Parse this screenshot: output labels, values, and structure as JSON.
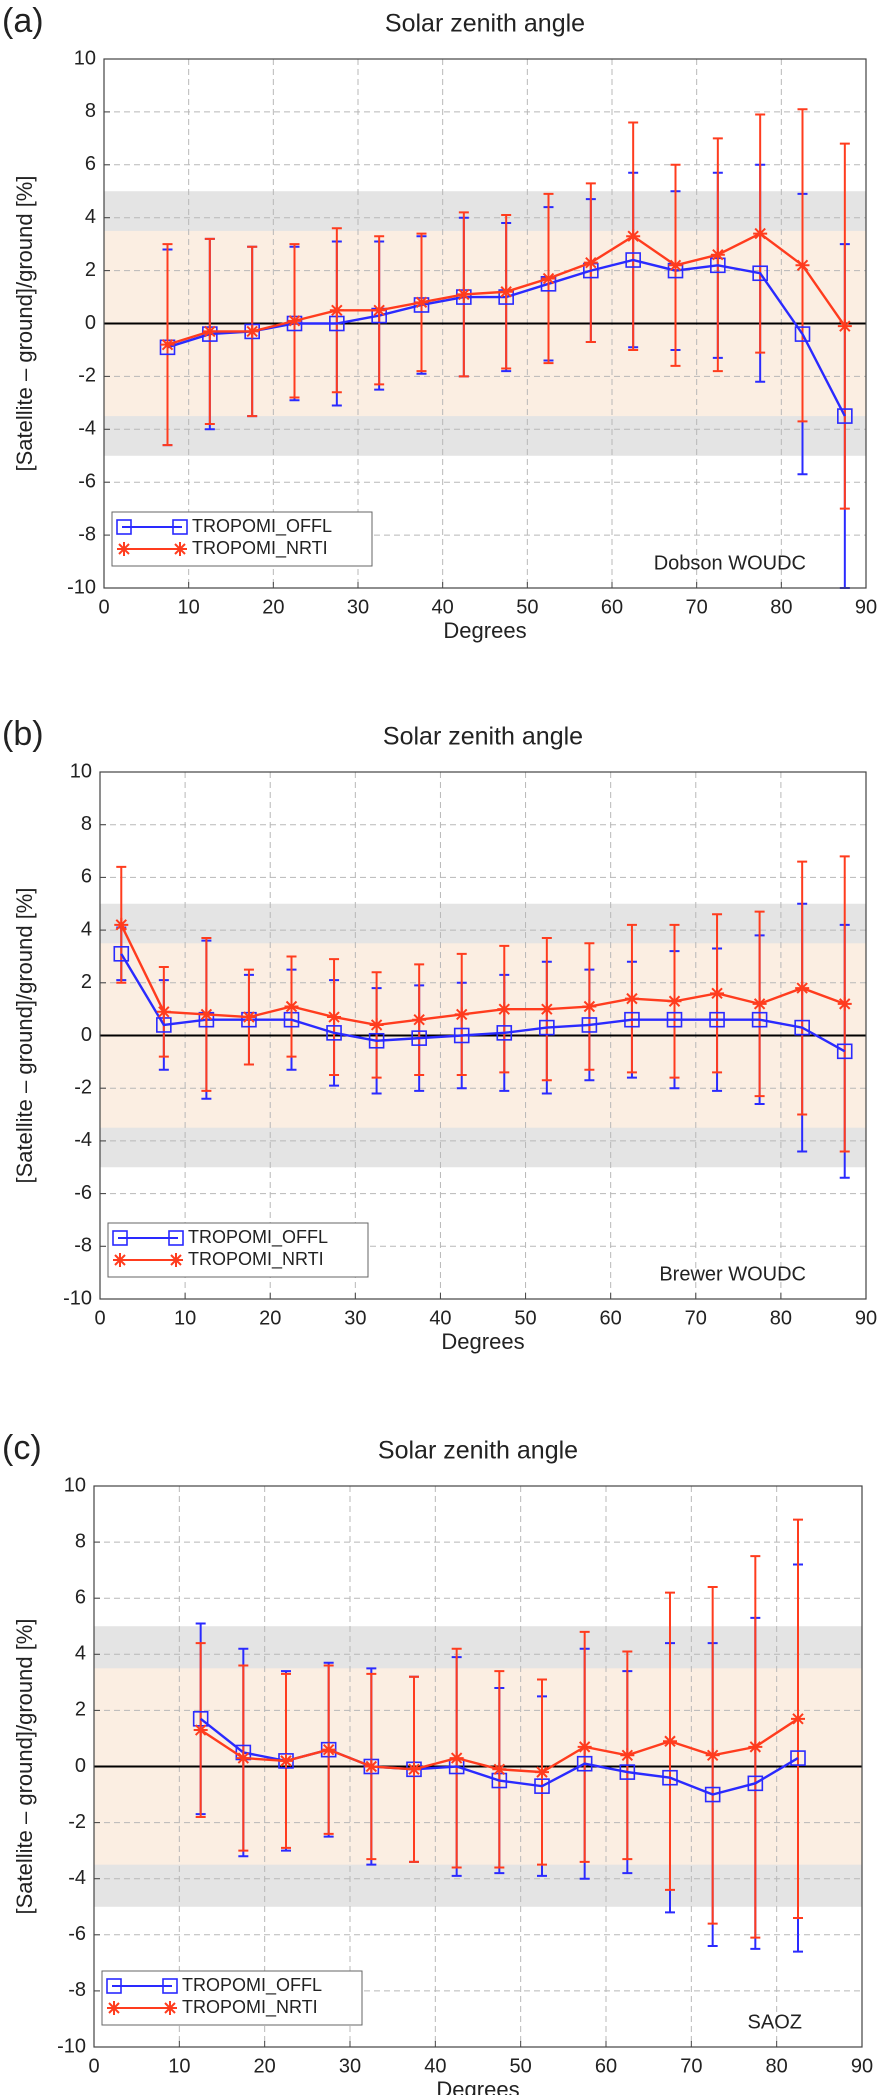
{
  "chart_data": [
    {
      "type": "line",
      "panel_label": "(a)",
      "title": "Solar zenith angle",
      "x_label": "Degrees",
      "y_label": "[Satellite – ground]/ground [%]",
      "annotation": "Dobson WOUDC",
      "x": [
        7.5,
        12.5,
        17.5,
        22.5,
        27.5,
        32.5,
        37.5,
        42.5,
        47.5,
        52.5,
        57.5,
        62.5,
        67.5,
        72.5,
        77.5,
        82.5,
        87.5
      ],
      "series": [
        {
          "name": "TROPOMI_OFFL",
          "color": "#2a2aff",
          "marker": "square",
          "values": [
            -0.9,
            -0.4,
            -0.3,
            0.0,
            0.0,
            0.3,
            0.7,
            1.0,
            1.0,
            1.5,
            2.0,
            2.4,
            2.0,
            2.2,
            1.9,
            -0.4,
            -3.5
          ],
          "errors": [
            3.7,
            3.6,
            3.2,
            2.9,
            3.1,
            2.8,
            2.6,
            3.0,
            2.8,
            2.9,
            2.7,
            3.3,
            3.0,
            3.5,
            4.1,
            5.3,
            6.5
          ]
        },
        {
          "name": "TROPOMI_NRTI",
          "color": "#ff3c1e",
          "marker": "asterisk",
          "values": [
            -0.8,
            -0.3,
            -0.3,
            0.1,
            0.5,
            0.5,
            0.8,
            1.1,
            1.2,
            1.7,
            2.3,
            3.3,
            2.2,
            2.6,
            3.4,
            2.2,
            -0.1
          ],
          "errors": [
            3.8,
            3.5,
            3.2,
            2.9,
            3.1,
            2.8,
            2.6,
            3.1,
            2.9,
            3.2,
            3.0,
            4.3,
            3.8,
            4.4,
            4.5,
            5.9,
            6.9
          ]
        }
      ],
      "bands": [
        {
          "range": [
            -5,
            5
          ],
          "color": "#e4e4e4"
        },
        {
          "range": [
            -3.5,
            3.5
          ],
          "color": "#fbeee2"
        }
      ],
      "xlim": [
        0,
        90
      ],
      "xticks": [
        0,
        10,
        20,
        30,
        40,
        50,
        60,
        70,
        80,
        90
      ],
      "ylim": [
        -10,
        10
      ],
      "yticks": [
        -10,
        -8,
        -6,
        -4,
        -2,
        0,
        2,
        4,
        6,
        8,
        10
      ],
      "grid": true,
      "legend": "lower left"
    },
    {
      "type": "line",
      "panel_label": "(b)",
      "title": "Solar zenith angle",
      "x_label": "Degrees",
      "y_label": "[Satellite – ground]/ground [%]",
      "annotation": "Brewer WOUDC",
      "x": [
        2.5,
        7.5,
        12.5,
        17.5,
        22.5,
        27.5,
        32.5,
        37.5,
        42.5,
        47.5,
        52.5,
        57.5,
        62.5,
        67.5,
        72.5,
        77.5,
        82.5,
        87.5
      ],
      "series": [
        {
          "name": "TROPOMI_OFFL",
          "color": "#2a2aff",
          "marker": "square",
          "values": [
            3.1,
            0.4,
            0.6,
            0.6,
            0.6,
            0.1,
            -0.2,
            -0.1,
            0.0,
            0.1,
            0.3,
            0.4,
            0.6,
            0.6,
            0.6,
            0.6,
            0.3,
            -0.6
          ],
          "errors": [
            1.0,
            1.7,
            3.0,
            1.7,
            1.9,
            2.0,
            2.0,
            2.0,
            2.0,
            2.2,
            2.5,
            2.1,
            2.2,
            2.6,
            2.7,
            3.2,
            4.7,
            4.8
          ]
        },
        {
          "name": "TROPOMI_NRTI",
          "color": "#ff3c1e",
          "marker": "asterisk",
          "values": [
            4.2,
            0.9,
            0.8,
            0.7,
            1.1,
            0.7,
            0.4,
            0.6,
            0.8,
            1.0,
            1.0,
            1.1,
            1.4,
            1.3,
            1.6,
            1.2,
            1.8,
            1.2
          ],
          "errors": [
            2.2,
            1.7,
            2.9,
            1.8,
            1.9,
            2.2,
            2.0,
            2.1,
            2.3,
            2.4,
            2.7,
            2.4,
            2.8,
            2.9,
            3.0,
            3.5,
            4.8,
            5.6
          ]
        }
      ],
      "bands": [
        {
          "range": [
            -5,
            5
          ],
          "color": "#e4e4e4"
        },
        {
          "range": [
            -3.5,
            3.5
          ],
          "color": "#fbeee2"
        }
      ],
      "xlim": [
        0,
        90
      ],
      "xticks": [
        0,
        10,
        20,
        30,
        40,
        50,
        60,
        70,
        80,
        90
      ],
      "ylim": [
        -10,
        10
      ],
      "yticks": [
        -10,
        -8,
        -6,
        -4,
        -2,
        0,
        2,
        4,
        6,
        8,
        10
      ],
      "grid": true,
      "legend": "lower left"
    },
    {
      "type": "line",
      "panel_label": "(c)",
      "title": "Solar zenith angle",
      "x_label": "Degrees",
      "y_label": "[Satellite – ground]/ground [%]",
      "annotation": "SAOZ",
      "x": [
        12.5,
        17.5,
        22.5,
        27.5,
        32.5,
        37.5,
        42.5,
        47.5,
        52.5,
        57.5,
        62.5,
        67.5,
        72.5,
        77.5,
        82.5
      ],
      "series": [
        {
          "name": "TROPOMI_OFFL",
          "color": "#2a2aff",
          "marker": "square",
          "values": [
            1.7,
            0.5,
            0.2,
            0.6,
            0.0,
            -0.1,
            0.0,
            -0.5,
            -0.7,
            0.1,
            -0.2,
            -0.4,
            -1.0,
            -0.6,
            0.3
          ],
          "errors": [
            3.4,
            3.7,
            3.2,
            3.1,
            3.5,
            3.3,
            3.9,
            3.3,
            3.2,
            4.1,
            3.6,
            4.8,
            5.4,
            5.9,
            6.9
          ]
        },
        {
          "name": "TROPOMI_NRTI",
          "color": "#ff3c1e",
          "marker": "asterisk",
          "values": [
            1.3,
            0.3,
            0.2,
            0.6,
            0.0,
            -0.1,
            0.3,
            -0.1,
            -0.2,
            0.7,
            0.4,
            0.9,
            0.4,
            0.7,
            1.7
          ],
          "errors": [
            3.1,
            3.3,
            3.1,
            3.0,
            3.3,
            3.3,
            3.9,
            3.5,
            3.3,
            4.1,
            3.7,
            5.3,
            6.0,
            6.8,
            7.1
          ]
        }
      ],
      "bands": [
        {
          "range": [
            -5,
            5
          ],
          "color": "#e4e4e4"
        },
        {
          "range": [
            -3.5,
            3.5
          ],
          "color": "#fbeee2"
        }
      ],
      "xlim": [
        0,
        90
      ],
      "xticks": [
        0,
        10,
        20,
        30,
        40,
        50,
        60,
        70,
        80,
        90
      ],
      "ylim": [
        -10,
        10
      ],
      "yticks": [
        -10,
        -8,
        -6,
        -4,
        -2,
        0,
        2,
        4,
        6,
        8,
        10
      ],
      "grid": true,
      "legend": "lower left"
    }
  ]
}
